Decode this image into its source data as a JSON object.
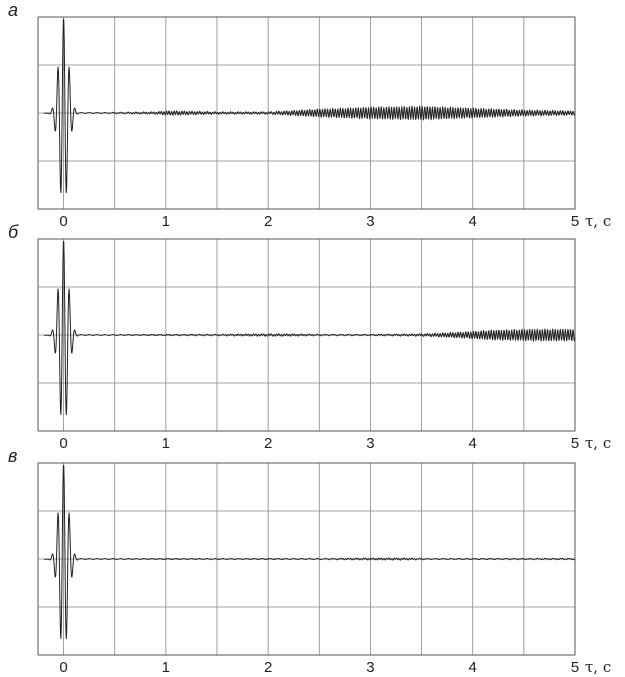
{
  "chart_data": [
    {
      "type": "line",
      "panel_label": "а",
      "xlabel": "τ, c",
      "xlim": [
        -0.25,
        5
      ],
      "ylim": [
        -1,
        1
      ],
      "x_ticks": [
        0,
        1,
        2,
        3,
        4,
        5
      ],
      "x_tick_labels": [
        "0",
        "1",
        "2",
        "3",
        "4",
        "5"
      ],
      "y_grid_count": 4,
      "grid": true,
      "series": [
        {
          "peak_x": 0,
          "peak_amplitude": 1.0,
          "tail_points": [
            [
              0.2,
              0.0
            ],
            [
              0.9,
              0.01
            ],
            [
              1.0,
              0.02
            ],
            [
              1.1,
              0.02
            ],
            [
              1.5,
              0.01
            ],
            [
              2.0,
              0.01
            ],
            [
              2.5,
              0.04
            ],
            [
              3.0,
              0.06
            ],
            [
              3.5,
              0.07
            ],
            [
              4.0,
              0.05
            ],
            [
              4.5,
              0.03
            ],
            [
              5.0,
              0.02
            ]
          ]
        }
      ]
    },
    {
      "type": "line",
      "panel_label": "б",
      "xlabel": "τ, c",
      "xlim": [
        -0.25,
        5
      ],
      "ylim": [
        -1,
        1
      ],
      "x_ticks": [
        0,
        1,
        2,
        3,
        4,
        5
      ],
      "x_tick_labels": [
        "0",
        "1",
        "2",
        "3",
        "4",
        "5"
      ],
      "y_grid_count": 4,
      "grid": true,
      "series": [
        {
          "peak_x": 0,
          "peak_amplitude": 1.0,
          "tail_points": [
            [
              0.2,
              0.0
            ],
            [
              1.0,
              0.005
            ],
            [
              1.5,
              0.005
            ],
            [
              1.9,
              0.01
            ],
            [
              2.2,
              0.01
            ],
            [
              2.5,
              0.005
            ],
            [
              3.0,
              0.005
            ],
            [
              3.5,
              0.01
            ],
            [
              3.9,
              0.03
            ],
            [
              4.2,
              0.05
            ],
            [
              4.6,
              0.06
            ],
            [
              5.0,
              0.06
            ]
          ]
        }
      ]
    },
    {
      "type": "line",
      "panel_label": "в",
      "xlabel": "τ, c",
      "xlim": [
        -0.25,
        5
      ],
      "ylim": [
        -1,
        1
      ],
      "x_ticks": [
        0,
        1,
        2,
        3,
        4,
        5
      ],
      "x_tick_labels": [
        "0",
        "1",
        "2",
        "3",
        "4",
        "5"
      ],
      "y_grid_count": 4,
      "grid": true,
      "series": [
        {
          "peak_x": 0,
          "peak_amplitude": 1.0,
          "tail_points": [
            [
              0.2,
              0.0
            ],
            [
              1.0,
              0.003
            ],
            [
              2.0,
              0.003
            ],
            [
              2.5,
              0.003
            ],
            [
              3.0,
              0.008
            ],
            [
              3.3,
              0.008
            ],
            [
              3.6,
              0.003
            ],
            [
              4.0,
              0.003
            ],
            [
              5.0,
              0.005
            ]
          ]
        }
      ]
    }
  ]
}
